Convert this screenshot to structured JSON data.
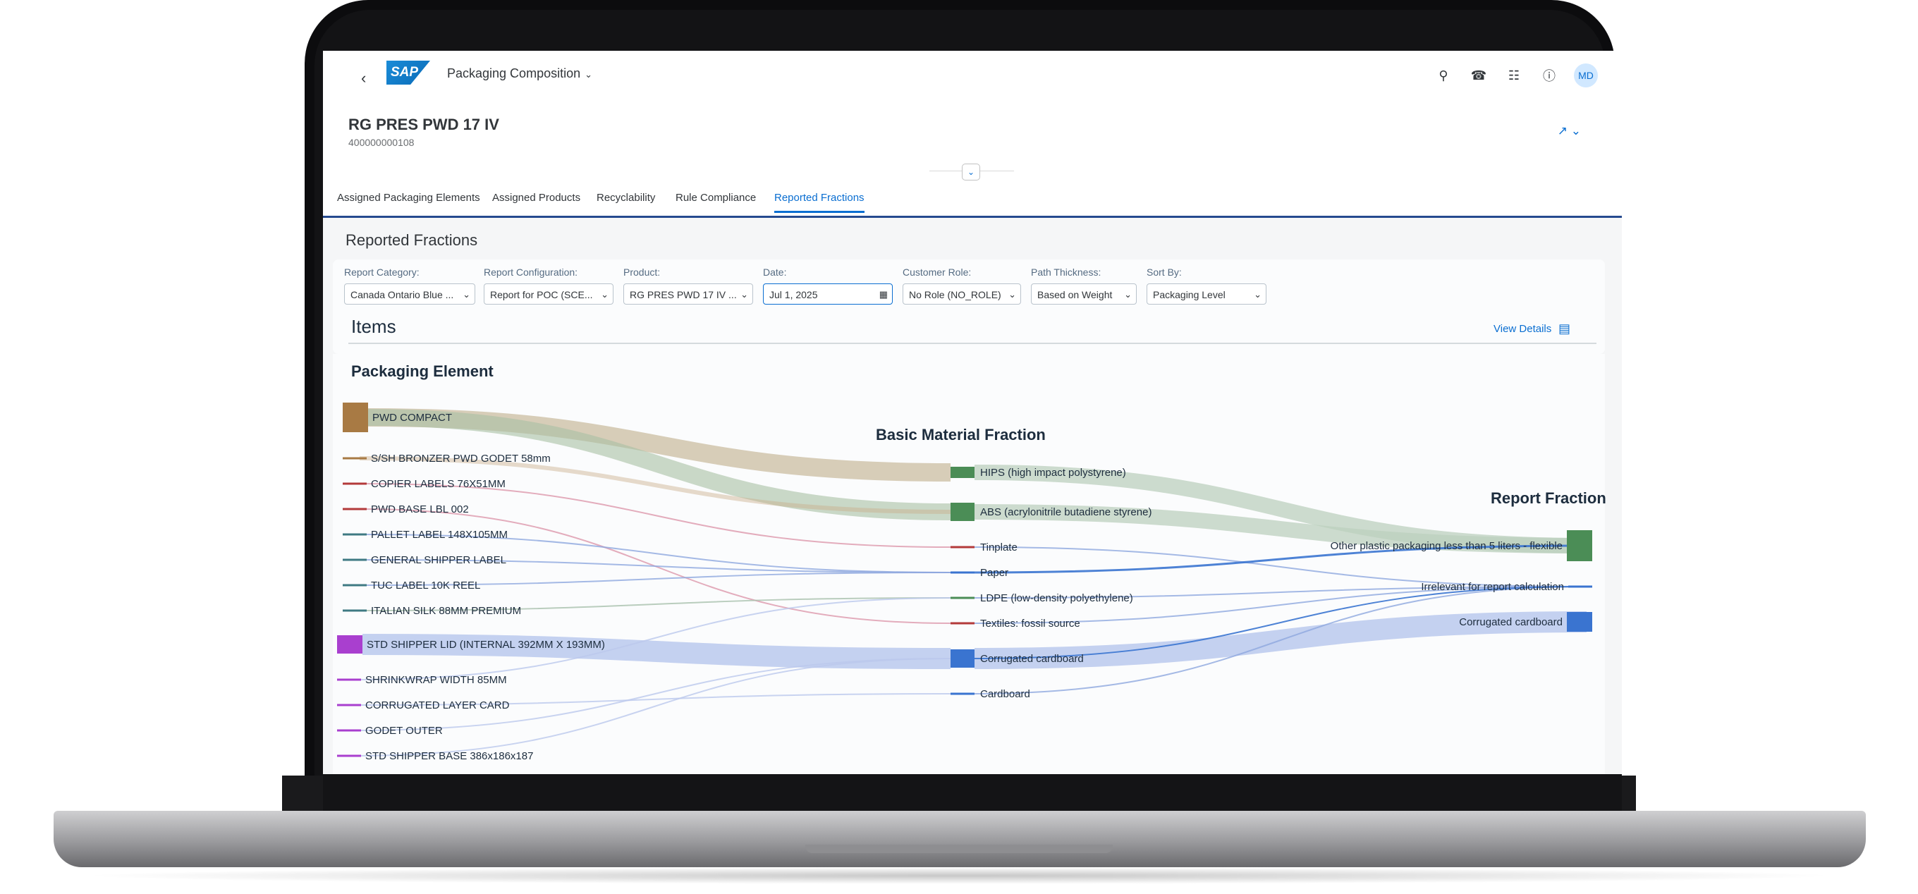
{
  "shell": {
    "app_title": "Packaging Composition",
    "avatar_initials": "MD",
    "logo_text": "SAP",
    "icons": [
      "search-icon",
      "headset-icon",
      "notification-icon",
      "help-icon"
    ]
  },
  "object": {
    "title": "RG PRES PWD 17 IV",
    "subtitle": "400000000108"
  },
  "tabs": [
    {
      "label": "Assigned Packaging Elements",
      "active": false
    },
    {
      "label": "Assigned Products",
      "active": false
    },
    {
      "label": "Recyclability",
      "active": false
    },
    {
      "label": "Rule Compliance",
      "active": false
    },
    {
      "label": "Reported Fractions",
      "active": true
    }
  ],
  "section": {
    "title": "Reported Fractions"
  },
  "filters": [
    {
      "label": "Report Category:",
      "value": "Canada Ontario Blue ..."
    },
    {
      "label": "Report Configuration:",
      "value": "Report for POC (SCE..."
    },
    {
      "label": "Product:",
      "value": "RG PRES PWD 17 IV ..."
    },
    {
      "label": "Date:",
      "value": "Jul 1, 2025"
    },
    {
      "label": "Customer Role:",
      "value": "No Role (NO_ROLE)"
    },
    {
      "label": "Path Thickness:",
      "value": "Based on Weight"
    },
    {
      "label": "Sort By:",
      "value": "Packaging Level"
    }
  ],
  "items": {
    "title": "Items",
    "view_details": "View Details"
  },
  "sankey": {
    "column_titles": {
      "left": "Packaging Element",
      "middle": "Basic Material Fraction",
      "right": "Report Fraction"
    },
    "left_nodes": [
      "PWD COMPACT",
      "S/SH BRONZER PWD GODET 58mm",
      "COPIER LABELS 76X51MM",
      "PWD BASE LBL 002",
      "PALLET LABEL 148X105MM",
      "GENERAL SHIPPER LABEL",
      "TUC LABEL 10K REEL",
      "ITALIAN SILK 88MM PREMIUM",
      "STD SHIPPER LID (INTERNAL 392MM X 193MM)",
      "SHRINKWRAP WIDTH 85MM",
      "CORRUGATED LAYER CARD",
      "GODET OUTER",
      "STD SHIPPER BASE 386x186x187"
    ],
    "middle_nodes": [
      "HIPS (high impact polystyrene)",
      "ABS (acrylonitrile butadiene styrene)",
      "Tinplate",
      "Paper",
      "LDPE (low-density polyethylene)",
      "Textiles: fossil source",
      "Corrugated cardboard",
      "Cardboard"
    ],
    "right_nodes": [
      "Other plastic packaging less than 5 liters - flexible",
      "Irrelevant for report calculation",
      "Corrugated cardboard"
    ],
    "colors": {
      "brown": "#a87a44",
      "purple": "#a93fcf",
      "green": "#4b8d56",
      "blue": "#3a74d0",
      "red": "#b33a3a",
      "teal": "#3f7a83"
    }
  }
}
